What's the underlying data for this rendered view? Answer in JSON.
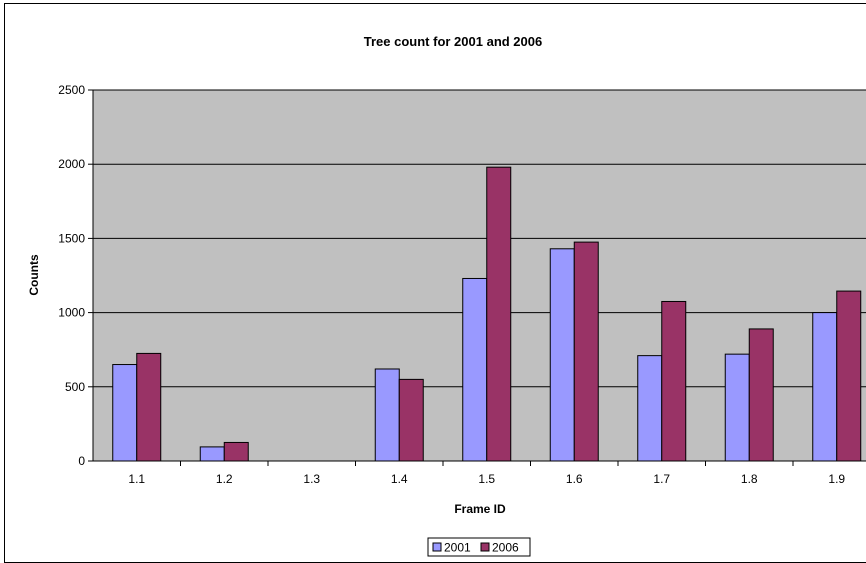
{
  "chart_data": {
    "type": "bar",
    "title": "Tree count for 2001 and 2006",
    "xlabel": "Frame ID",
    "ylabel": "Counts",
    "categories": [
      "1.1",
      "1.2",
      "1.3",
      "1.4",
      "1.5",
      "1.6",
      "1.7",
      "1.8",
      "1.9"
    ],
    "series": [
      {
        "name": "2001",
        "values": [
          650,
          95,
          0,
          620,
          1230,
          1430,
          710,
          720,
          1000
        ]
      },
      {
        "name": "2006",
        "values": [
          725,
          125,
          0,
          550,
          1980,
          1475,
          1075,
          890,
          1145
        ]
      }
    ],
    "ylim": [
      0,
      2500
    ],
    "yticks": [
      "0",
      "500",
      "1000",
      "1500",
      "2000",
      "2500"
    ],
    "grid": true,
    "legend_position": "bottom-center",
    "colors": {
      "plot_bg": "#c0c0c0",
      "series_2001": "#9999ff",
      "series_2006": "#993366"
    }
  }
}
